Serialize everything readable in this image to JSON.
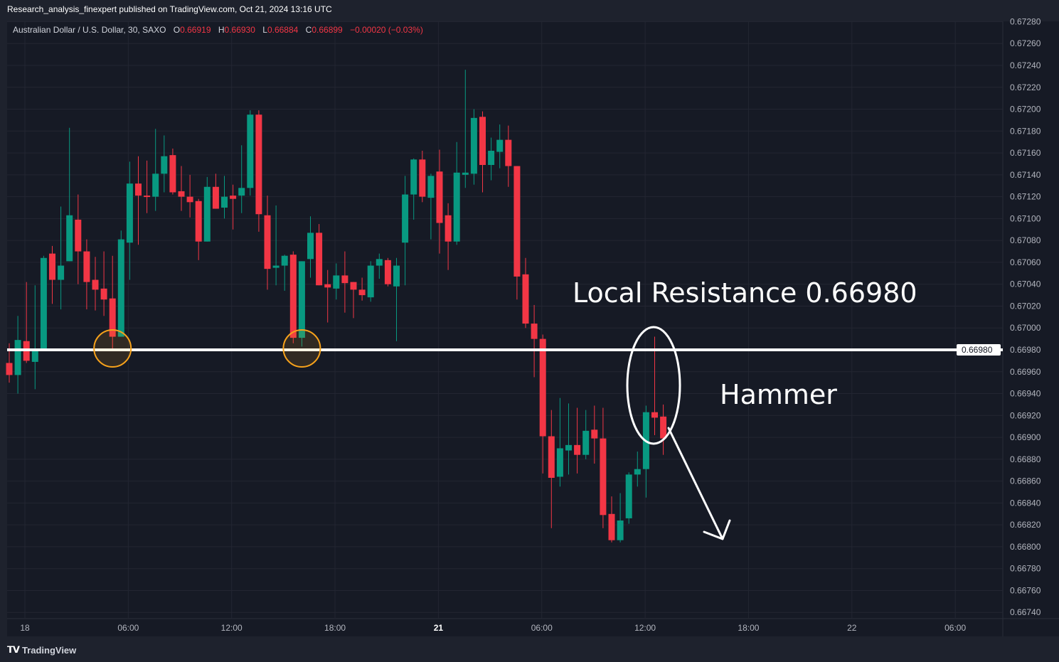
{
  "header": {
    "published": "Research_analysis_finexpert published on TradingView.com, Oct 21, 2024 13:16 UTC"
  },
  "legend": {
    "symbol": "Australian Dollar / U.S. Dollar, 30, SAXO",
    "o_label": "O",
    "o": "0.66919",
    "h_label": "H",
    "h": "0.66930",
    "l_label": "L",
    "l": "0.66884",
    "c_label": "C",
    "c": "0.66899",
    "change": "−0.00020 (−0.03%)"
  },
  "footer": {
    "brand": "TradingView",
    "logo": "TV"
  },
  "colors": {
    "up": "#089981",
    "down": "#F23645",
    "background": "#161A25",
    "grid": "#232632",
    "support_line": "#FFFFFF",
    "circle": "#F7A21B"
  },
  "annotations": {
    "resistance_text": "Local Resistance 0.66980",
    "pattern_text": "Hammer",
    "level_label": "0.66980",
    "level": 0.6698
  },
  "chart_data": {
    "type": "candlestick",
    "title": "",
    "interval": "30",
    "ylim": [
      0.6673,
      0.67285
    ],
    "grid": true,
    "y_ticks": [
      "0.67280",
      "0.67260",
      "0.67240",
      "0.67220",
      "0.67200",
      "0.67180",
      "0.67160",
      "0.67140",
      "0.67120",
      "0.67100",
      "0.67080",
      "0.67060",
      "0.67040",
      "0.67020",
      "0.67000",
      "0.66980",
      "0.66960",
      "0.66940",
      "0.66920",
      "0.66900",
      "0.66880",
      "0.66860",
      "0.66840",
      "0.66820",
      "0.66800",
      "0.66780",
      "0.66760",
      "0.66740"
    ],
    "x_ticks": [
      {
        "label": "18",
        "bold": false
      },
      {
        "label": "06:00",
        "bold": false
      },
      {
        "label": "12:00",
        "bold": false
      },
      {
        "label": "18:00",
        "bold": false
      },
      {
        "label": "21",
        "bold": true
      },
      {
        "label": "06:00",
        "bold": false
      },
      {
        "label": "12:00",
        "bold": false
      },
      {
        "label": "18:00",
        "bold": false
      },
      {
        "label": "22",
        "bold": false
      },
      {
        "label": "06:00",
        "bold": false
      }
    ],
    "ohlc": [
      [
        0.66968,
        0.66986,
        0.6695,
        0.66957
      ],
      [
        0.66957,
        0.67011,
        0.6694,
        0.66989
      ],
      [
        0.66988,
        0.67042,
        0.66968,
        0.6697
      ],
      [
        0.66969,
        0.67039,
        0.66944,
        0.66981
      ],
      [
        0.66979,
        0.67066,
        0.66979,
        0.67064
      ],
      [
        0.67068,
        0.67075,
        0.67022,
        0.67044
      ],
      [
        0.67044,
        0.67111,
        0.67017,
        0.67057
      ],
      [
        0.67061,
        0.67183,
        0.67061,
        0.67103
      ],
      [
        0.67099,
        0.67122,
        0.6704,
        0.6707
      ],
      [
        0.6707,
        0.67081,
        0.67017,
        0.67042
      ],
      [
        0.67044,
        0.67065,
        0.67016,
        0.67035
      ],
      [
        0.67036,
        0.6707,
        0.67011,
        0.67026
      ],
      [
        0.67027,
        0.67066,
        0.66979,
        0.66992
      ],
      [
        0.66992,
        0.67089,
        0.66992,
        0.67081
      ],
      [
        0.67078,
        0.67152,
        0.67044,
        0.67132
      ],
      [
        0.67132,
        0.67157,
        0.67076,
        0.67121
      ],
      [
        0.67121,
        0.67153,
        0.67105,
        0.6712
      ],
      [
        0.6712,
        0.67182,
        0.67107,
        0.67141
      ],
      [
        0.67141,
        0.67176,
        0.67124,
        0.67157
      ],
      [
        0.67158,
        0.67164,
        0.67122,
        0.67124
      ],
      [
        0.67125,
        0.67148,
        0.67107,
        0.6712
      ],
      [
        0.6712,
        0.6714,
        0.67101,
        0.67115
      ],
      [
        0.67116,
        0.67118,
        0.67062,
        0.67079
      ],
      [
        0.67079,
        0.67138,
        0.67079,
        0.67129
      ],
      [
        0.67129,
        0.67141,
        0.67109,
        0.67109
      ],
      [
        0.6711,
        0.67139,
        0.671,
        0.6712
      ],
      [
        0.67121,
        0.67131,
        0.6709,
        0.67118
      ],
      [
        0.67121,
        0.67167,
        0.67105,
        0.67128
      ],
      [
        0.67128,
        0.67199,
        0.67121,
        0.67195
      ],
      [
        0.67195,
        0.67199,
        0.67088,
        0.67104
      ],
      [
        0.67103,
        0.67121,
        0.67035,
        0.67054
      ],
      [
        0.67055,
        0.67112,
        0.67039,
        0.67057
      ],
      [
        0.67057,
        0.67067,
        0.67034,
        0.67066
      ],
      [
        0.67067,
        0.6707,
        0.66986,
        0.66991
      ],
      [
        0.66991,
        0.67061,
        0.66983,
        0.67061
      ],
      [
        0.67063,
        0.67102,
        0.67046,
        0.67087
      ],
      [
        0.67087,
        0.67095,
        0.67039,
        0.67039
      ],
      [
        0.6704,
        0.67053,
        0.67005,
        0.67037
      ],
      [
        0.67036,
        0.67059,
        0.67026,
        0.67048
      ],
      [
        0.67048,
        0.6707,
        0.67014,
        0.67041
      ],
      [
        0.67042,
        0.67042,
        0.67009,
        0.67035
      ],
      [
        0.67035,
        0.67046,
        0.67025,
        0.6703
      ],
      [
        0.67028,
        0.67061,
        0.67024,
        0.67057
      ],
      [
        0.67057,
        0.67068,
        0.67045,
        0.67063
      ],
      [
        0.67062,
        0.67064,
        0.67038,
        0.6704
      ],
      [
        0.67038,
        0.67064,
        0.66988,
        0.67057
      ],
      [
        0.67078,
        0.67139,
        0.67039,
        0.67122
      ],
      [
        0.67122,
        0.67155,
        0.67099,
        0.67154
      ],
      [
        0.67154,
        0.67162,
        0.67115,
        0.6712
      ],
      [
        0.67119,
        0.67141,
        0.67081,
        0.67139
      ],
      [
        0.67143,
        0.67163,
        0.67068,
        0.67096
      ],
      [
        0.67103,
        0.67114,
        0.67053,
        0.67079
      ],
      [
        0.67079,
        0.6717,
        0.67076,
        0.67142
      ],
      [
        0.6714,
        0.67236,
        0.67128,
        0.67142
      ],
      [
        0.67141,
        0.672,
        0.67131,
        0.67192
      ],
      [
        0.67193,
        0.67198,
        0.67124,
        0.67149
      ],
      [
        0.67149,
        0.67174,
        0.67135,
        0.67162
      ],
      [
        0.67161,
        0.67186,
        0.67146,
        0.67172
      ],
      [
        0.67172,
        0.67185,
        0.67129,
        0.67148
      ],
      [
        0.67148,
        0.67148,
        0.67026,
        0.67047
      ],
      [
        0.67049,
        0.67064,
        0.67,
        0.67004
      ],
      [
        0.67004,
        0.67021,
        0.66955,
        0.6699
      ],
      [
        0.6699,
        0.66994,
        0.66867,
        0.66901
      ],
      [
        0.66901,
        0.66925,
        0.66817,
        0.66863
      ],
      [
        0.66864,
        0.66936,
        0.66855,
        0.6689
      ],
      [
        0.66888,
        0.66931,
        0.66866,
        0.66893
      ],
      [
        0.66893,
        0.66927,
        0.66867,
        0.66884
      ],
      [
        0.66884,
        0.66925,
        0.6688,
        0.66906
      ],
      [
        0.66907,
        0.66929,
        0.66876,
        0.66899
      ],
      [
        0.66899,
        0.66927,
        0.66817,
        0.66829
      ],
      [
        0.6683,
        0.66846,
        0.66804,
        0.66806
      ],
      [
        0.66806,
        0.66849,
        0.66804,
        0.66824
      ],
      [
        0.66826,
        0.66868,
        0.66821,
        0.66866
      ],
      [
        0.66866,
        0.66887,
        0.66855,
        0.66871
      ],
      [
        0.66871,
        0.66929,
        0.66845,
        0.66923
      ],
      [
        0.66923,
        0.66992,
        0.66902,
        0.66918
      ],
      [
        0.66919,
        0.6693,
        0.66884,
        0.66899
      ]
    ]
  }
}
